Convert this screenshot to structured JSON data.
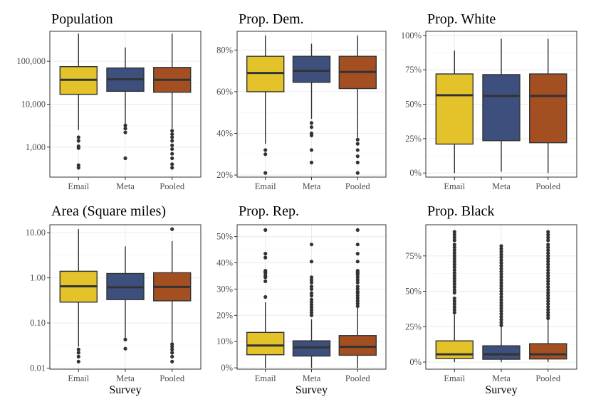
{
  "colors": {
    "Email": "#E3C22A",
    "Meta": "#3D4F7C",
    "Pooled": "#A34F22"
  },
  "x_axis_title": "Survey",
  "chart_data": [
    {
      "type": "box",
      "title": "Population",
      "scale": "log",
      "ylim": [
        200,
        500000
      ],
      "yticks": [
        1000,
        10000,
        100000
      ],
      "yticklabels": [
        "1,000",
        "10,000",
        "100,000"
      ],
      "categories": [
        "Email",
        "Meta",
        "Pooled"
      ],
      "boxes": [
        {
          "category": "Email",
          "min": 2500,
          "q1": 17000,
          "median": 37000,
          "q3": 75000,
          "max": 440000,
          "outliers": [
            1700,
            1400,
            1050,
            950,
            380,
            330
          ]
        },
        {
          "category": "Meta",
          "min": 3500,
          "q1": 20000,
          "median": 38000,
          "q3": 70000,
          "max": 210000,
          "outliers": [
            3200,
            2700,
            2200,
            550
          ]
        },
        {
          "category": "Pooled",
          "min": 2700,
          "q1": 19000,
          "median": 37000,
          "q3": 72000,
          "max": 440000,
          "outliers": [
            2400,
            2000,
            1700,
            1400,
            1100,
            900,
            700,
            550,
            400,
            330
          ]
        }
      ]
    },
    {
      "type": "box",
      "title": "Prop. Dem.",
      "scale": "linear",
      "ylim": [
        0.19,
        0.89
      ],
      "yticks": [
        0.2,
        0.4,
        0.6,
        0.8
      ],
      "yticklabels": [
        "20%",
        "40%",
        "60%",
        "80%"
      ],
      "categories": [
        "Email",
        "Meta",
        "Pooled"
      ],
      "boxes": [
        {
          "category": "Email",
          "min": 0.35,
          "q1": 0.6,
          "median": 0.69,
          "q3": 0.77,
          "max": 0.87,
          "outliers": [
            0.32,
            0.3,
            0.21
          ]
        },
        {
          "category": "Meta",
          "min": 0.47,
          "q1": 0.645,
          "median": 0.7,
          "q3": 0.77,
          "max": 0.83,
          "outliers": [
            0.45,
            0.43,
            0.4,
            0.39,
            0.32,
            0.26
          ]
        },
        {
          "category": "Pooled",
          "min": 0.38,
          "q1": 0.615,
          "median": 0.695,
          "q3": 0.77,
          "max": 0.87,
          "outliers": [
            0.37,
            0.35,
            0.32,
            0.29,
            0.26,
            0.21
          ]
        }
      ]
    },
    {
      "type": "box",
      "title": "Prop. White",
      "scale": "linear",
      "ylim": [
        -0.03,
        1.03
      ],
      "yticks": [
        0,
        0.25,
        0.5,
        0.75,
        1.0
      ],
      "yticklabels": [
        "0%",
        "25%",
        "50%",
        "75%",
        "100%"
      ],
      "categories": [
        "Email",
        "Meta",
        "Pooled"
      ],
      "boxes": [
        {
          "category": "Email",
          "min": 0.0,
          "q1": 0.21,
          "median": 0.565,
          "q3": 0.72,
          "max": 0.89,
          "outliers": []
        },
        {
          "category": "Meta",
          "min": 0.01,
          "q1": 0.235,
          "median": 0.56,
          "q3": 0.715,
          "max": 0.975,
          "outliers": []
        },
        {
          "category": "Pooled",
          "min": 0.0,
          "q1": 0.22,
          "median": 0.56,
          "q3": 0.72,
          "max": 0.975,
          "outliers": []
        }
      ]
    },
    {
      "type": "box",
      "title": "Area (Square miles)",
      "scale": "log",
      "ylim": [
        0.0095,
        15
      ],
      "yticks": [
        0.01,
        0.1,
        1,
        10
      ],
      "yticklabels": [
        "0.01",
        "0.10",
        "1.00",
        "10.00"
      ],
      "categories": [
        "Email",
        "Meta",
        "Pooled"
      ],
      "boxes": [
        {
          "category": "Email",
          "min": 0.03,
          "q1": 0.29,
          "median": 0.65,
          "q3": 1.4,
          "max": 12,
          "outliers": [
            0.026,
            0.022,
            0.018,
            0.014
          ]
        },
        {
          "category": "Meta",
          "min": 0.045,
          "q1": 0.33,
          "median": 0.62,
          "q3": 1.25,
          "max": 5.0,
          "outliers": [
            0.043,
            0.027
          ]
        },
        {
          "category": "Pooled",
          "min": 0.035,
          "q1": 0.31,
          "median": 0.63,
          "q3": 1.3,
          "max": 6.5,
          "outliers": [
            12,
            0.034,
            0.03,
            0.026,
            0.022,
            0.018,
            0.014
          ]
        }
      ]
    },
    {
      "type": "box",
      "title": "Prop. Rep.",
      "scale": "linear",
      "ylim": [
        -0.005,
        0.545
      ],
      "yticks": [
        0,
        0.1,
        0.2,
        0.3,
        0.4,
        0.5
      ],
      "yticklabels": [
        "0%",
        "10%",
        "20%",
        "30%",
        "40%",
        "50%"
      ],
      "categories": [
        "Email",
        "Meta",
        "Pooled"
      ],
      "boxes": [
        {
          "category": "Email",
          "min": 0.0,
          "q1": 0.05,
          "median": 0.085,
          "q3": 0.135,
          "max": 0.25,
          "outliers": [
            0.525,
            0.435,
            0.42,
            0.37,
            0.365,
            0.36,
            0.35,
            0.345,
            0.33,
            0.27
          ]
        },
        {
          "category": "Meta",
          "min": 0.0,
          "q1": 0.045,
          "median": 0.078,
          "q3": 0.103,
          "max": 0.185,
          "outliers": [
            0.47,
            0.405,
            0.345,
            0.335,
            0.325,
            0.31,
            0.3,
            0.285,
            0.275,
            0.26,
            0.25,
            0.24,
            0.23,
            0.22,
            0.21,
            0.2
          ]
        },
        {
          "category": "Pooled",
          "min": 0.0,
          "q1": 0.048,
          "median": 0.08,
          "q3": 0.123,
          "max": 0.23,
          "outliers": [
            0.525,
            0.47,
            0.435,
            0.405,
            0.37,
            0.365,
            0.36,
            0.355,
            0.345,
            0.335,
            0.325,
            0.31,
            0.3,
            0.29,
            0.285,
            0.275,
            0.265,
            0.255,
            0.245,
            0.235
          ]
        }
      ]
    },
    {
      "type": "box",
      "title": "Prop. Black",
      "scale": "linear",
      "ylim": [
        -0.05,
        0.97
      ],
      "yticks": [
        0,
        0.25,
        0.5,
        0.75
      ],
      "yticklabels": [
        "0%",
        "25%",
        "50%",
        "75%"
      ],
      "categories": [
        "Email",
        "Meta",
        "Pooled"
      ],
      "boxes": [
        {
          "category": "Email",
          "min": 0.0,
          "q1": 0.025,
          "median": 0.055,
          "q3": 0.15,
          "max": 0.335,
          "outliers": [
            0.92,
            0.9,
            0.88,
            0.86,
            0.83,
            0.81,
            0.79,
            0.77,
            0.75,
            0.73,
            0.71,
            0.69,
            0.67,
            0.65,
            0.63,
            0.61,
            0.59,
            0.57,
            0.55,
            0.53,
            0.51,
            0.49,
            0.45,
            0.43,
            0.41,
            0.39,
            0.37,
            0.35
          ]
        },
        {
          "category": "Meta",
          "min": 0.0,
          "q1": 0.02,
          "median": 0.055,
          "q3": 0.115,
          "max": 0.25,
          "outliers": [
            0.82,
            0.8,
            0.78,
            0.76,
            0.74,
            0.72,
            0.7,
            0.68,
            0.66,
            0.64,
            0.62,
            0.6,
            0.58,
            0.56,
            0.54,
            0.52,
            0.5,
            0.48,
            0.46,
            0.44,
            0.42,
            0.4,
            0.38,
            0.36,
            0.34,
            0.32,
            0.3,
            0.28,
            0.26
          ]
        },
        {
          "category": "Pooled",
          "min": 0.0,
          "q1": 0.022,
          "median": 0.055,
          "q3": 0.13,
          "max": 0.305,
          "outliers": [
            0.92,
            0.9,
            0.88,
            0.86,
            0.83,
            0.81,
            0.79,
            0.77,
            0.75,
            0.73,
            0.71,
            0.69,
            0.67,
            0.65,
            0.63,
            0.61,
            0.59,
            0.57,
            0.55,
            0.53,
            0.51,
            0.49,
            0.47,
            0.45,
            0.43,
            0.41,
            0.39,
            0.37,
            0.35,
            0.33,
            0.31
          ]
        }
      ]
    }
  ]
}
